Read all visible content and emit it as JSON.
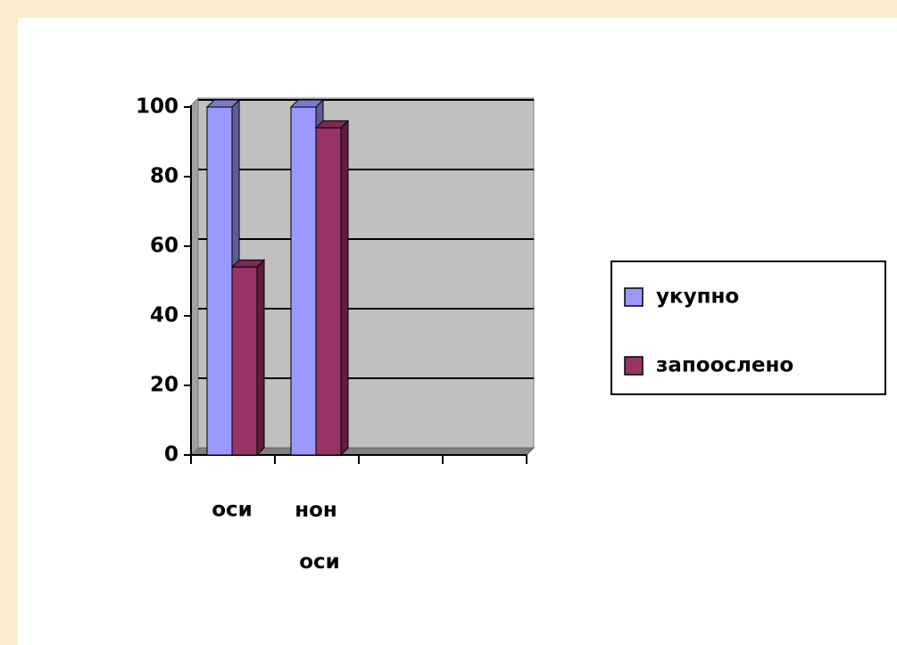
{
  "chart_data": {
    "type": "bar3d",
    "categories": [
      "оси",
      "нон оси",
      null,
      null
    ],
    "series": [
      {
        "name": "укупно",
        "color": "#9999ff",
        "values": [
          100,
          100,
          null,
          null
        ]
      },
      {
        "name": "запоослено",
        "color": "#993366",
        "values": [
          54,
          94,
          null,
          null
        ]
      }
    ],
    "ylim": [
      0,
      100
    ],
    "yticks": [
      0,
      20,
      40,
      60,
      80,
      100
    ],
    "grid": true,
    "legend": "right"
  }
}
